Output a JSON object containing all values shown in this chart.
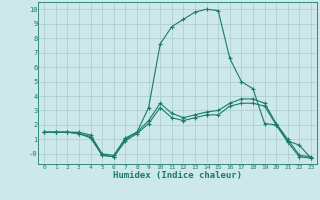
{
  "xlabel": "Humidex (Indice chaleur)",
  "bg_color": "#cce8e8",
  "grid_color": "#aacccc",
  "line_color": "#1a7a6e",
  "xlim": [
    -0.5,
    23.5
  ],
  "ylim": [
    -0.7,
    10.5
  ],
  "xticks": [
    0,
    1,
    2,
    3,
    4,
    5,
    6,
    7,
    8,
    9,
    10,
    11,
    12,
    13,
    14,
    15,
    16,
    17,
    18,
    19,
    20,
    21,
    22,
    23
  ],
  "yticks": [
    0,
    1,
    2,
    3,
    4,
    5,
    6,
    7,
    8,
    9,
    10
  ],
  "ytick_labels": [
    "-0",
    "1",
    "2",
    "3",
    "4",
    "5",
    "6",
    "7",
    "8",
    "9",
    "10"
  ],
  "series": [
    [
      1.5,
      1.5,
      1.5,
      1.4,
      1.1,
      -0.1,
      -0.2,
      0.9,
      1.4,
      2.1,
      3.2,
      2.5,
      2.3,
      2.5,
      2.7,
      2.7,
      3.3,
      3.5,
      3.5,
      3.3,
      2.0,
      0.8,
      -0.2,
      -0.3
    ],
    [
      1.5,
      1.5,
      1.5,
      1.4,
      1.2,
      -0.1,
      -0.2,
      1.0,
      1.5,
      3.2,
      7.6,
      8.8,
      9.3,
      9.8,
      10.0,
      9.9,
      6.6,
      5.0,
      4.5,
      2.1,
      2.0,
      0.9,
      0.6,
      -0.3
    ],
    [
      1.5,
      1.5,
      1.5,
      1.5,
      1.3,
      0.0,
      -0.1,
      1.1,
      1.5,
      2.3,
      3.5,
      2.8,
      2.5,
      2.7,
      2.9,
      3.0,
      3.5,
      3.8,
      3.8,
      3.5,
      2.1,
      1.0,
      -0.1,
      -0.2
    ]
  ],
  "figsize": [
    3.2,
    2.0
  ],
  "dpi": 100
}
